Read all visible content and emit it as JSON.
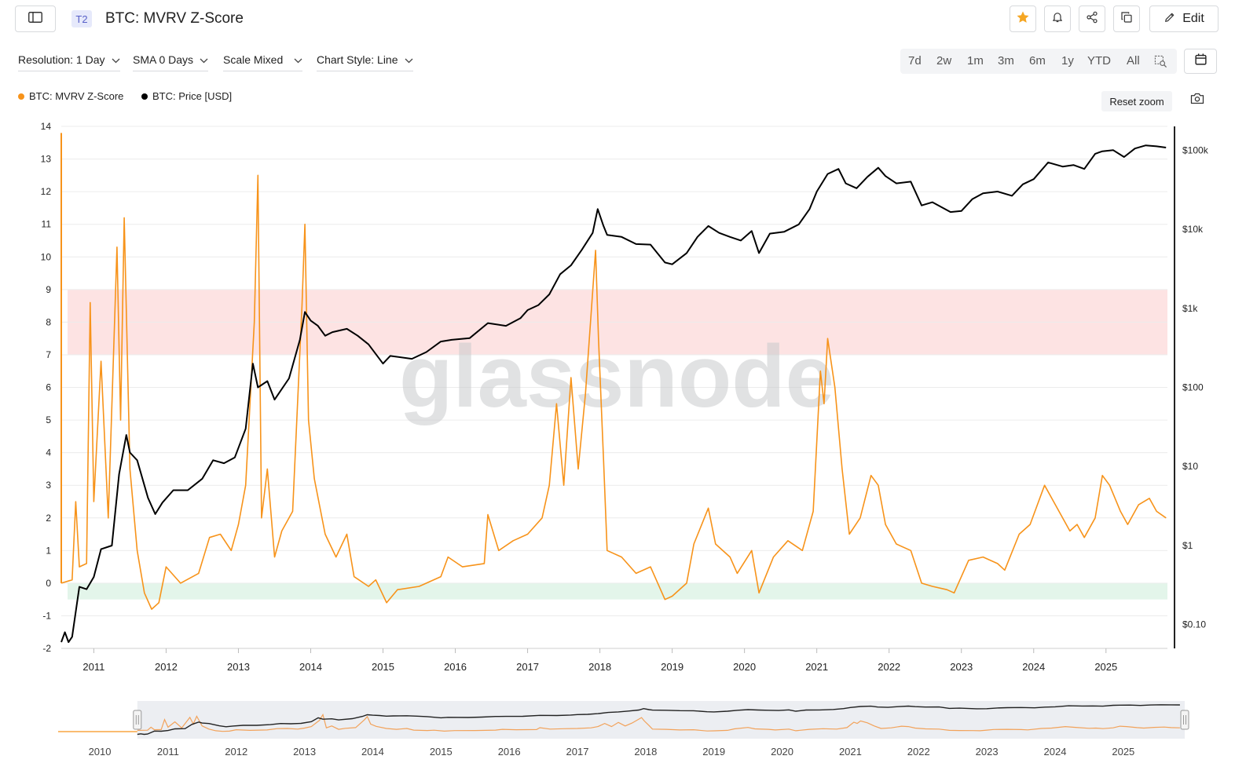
{
  "header": {
    "tier": "T2",
    "title": "BTC: MVRV Z-Score",
    "edit_label": "Edit"
  },
  "toolbar": {
    "resolution": "Resolution: 1 Day",
    "sma": "SMA 0 Days",
    "scale": "Scale Mixed",
    "chart_style": "Chart Style: Line",
    "ranges": [
      "7d",
      "2w",
      "1m",
      "3m",
      "6m",
      "1y",
      "YTD",
      "All"
    ]
  },
  "legend": {
    "zscore": "BTC: MVRV Z-Score",
    "price": "BTC: Price [USD]",
    "zscore_color": "#f7931a",
    "price_color": "#000000"
  },
  "reset_zoom": "Reset zoom",
  "watermark": "glassnode",
  "chart_data": {
    "type": "line",
    "title": "BTC: MVRV Z-Score",
    "x_range": [
      2010.55,
      2025.85
    ],
    "left_axis": {
      "ticks": [
        "14",
        "13",
        "12",
        "11",
        "10",
        "9",
        "8",
        "7",
        "6",
        "5",
        "4",
        "3",
        "2",
        "1",
        "0",
        "-1",
        "-2"
      ],
      "min": -2,
      "max": 14
    },
    "right_axis": {
      "scale": "log",
      "ticks": [
        "$100k",
        "$10k",
        "$1k",
        "$100",
        "$10",
        "$1",
        "$0.10"
      ],
      "min": 0.05,
      "max": 200000
    },
    "x_ticks": [
      "2011",
      "2012",
      "2013",
      "2014",
      "2015",
      "2016",
      "2017",
      "2018",
      "2019",
      "2020",
      "2021",
      "2022",
      "2023",
      "2024",
      "2025"
    ],
    "navigator_ticks": [
      "2010",
      "2011",
      "2012",
      "2013",
      "2014",
      "2015",
      "2016",
      "2017",
      "2018",
      "2019",
      "2020",
      "2021",
      "2022",
      "2023",
      "2024",
      "2025"
    ],
    "bands": [
      {
        "name": "overvalued-band",
        "y_from": 7,
        "y_to": 9,
        "color": "#fde3e3"
      },
      {
        "name": "undervalued-band",
        "y_from": -0.5,
        "y_to": 0,
        "color": "#e3f5ea"
      }
    ],
    "series": [
      {
        "name": "BTC: MVRV Z-Score",
        "axis": "left",
        "color": "#f7931a",
        "points": [
          [
            2010.55,
            0
          ],
          [
            2010.7,
            0.1
          ],
          [
            2010.75,
            2.5
          ],
          [
            2010.8,
            0.5
          ],
          [
            2010.9,
            0.6
          ],
          [
            2010.95,
            8.6
          ],
          [
            2011.0,
            2.5
          ],
          [
            2011.1,
            6.8
          ],
          [
            2011.2,
            2.0
          ],
          [
            2011.32,
            10.3
          ],
          [
            2011.37,
            5.0
          ],
          [
            2011.42,
            11.2
          ],
          [
            2011.5,
            3.5
          ],
          [
            2011.6,
            1.0
          ],
          [
            2011.7,
            -0.3
          ],
          [
            2011.8,
            -0.8
          ],
          [
            2011.9,
            -0.6
          ],
          [
            2012.0,
            0.5
          ],
          [
            2012.2,
            0
          ],
          [
            2012.45,
            0.3
          ],
          [
            2012.6,
            1.4
          ],
          [
            2012.75,
            1.5
          ],
          [
            2012.9,
            1.0
          ],
          [
            2013.0,
            1.8
          ],
          [
            2013.1,
            3.0
          ],
          [
            2013.22,
            8.0
          ],
          [
            2013.27,
            12.5
          ],
          [
            2013.32,
            2.0
          ],
          [
            2013.4,
            3.5
          ],
          [
            2013.5,
            0.8
          ],
          [
            2013.6,
            1.6
          ],
          [
            2013.75,
            2.2
          ],
          [
            2013.88,
            8.5
          ],
          [
            2013.92,
            11.0
          ],
          [
            2013.97,
            5.0
          ],
          [
            2014.05,
            3.2
          ],
          [
            2014.2,
            1.5
          ],
          [
            2014.35,
            0.8
          ],
          [
            2014.5,
            1.5
          ],
          [
            2014.6,
            0.2
          ],
          [
            2014.8,
            -0.1
          ],
          [
            2014.9,
            0.1
          ],
          [
            2015.05,
            -0.6
          ],
          [
            2015.2,
            -0.2
          ],
          [
            2015.5,
            -0.1
          ],
          [
            2015.8,
            0.2
          ],
          [
            2015.9,
            0.8
          ],
          [
            2016.1,
            0.5
          ],
          [
            2016.4,
            0.6
          ],
          [
            2016.45,
            2.1
          ],
          [
            2016.6,
            1.0
          ],
          [
            2016.8,
            1.3
          ],
          [
            2017.0,
            1.5
          ],
          [
            2017.2,
            2.0
          ],
          [
            2017.3,
            3.0
          ],
          [
            2017.4,
            5.5
          ],
          [
            2017.5,
            3.0
          ],
          [
            2017.6,
            6.3
          ],
          [
            2017.7,
            3.5
          ],
          [
            2017.8,
            5.8
          ],
          [
            2017.94,
            10.2
          ],
          [
            2017.98,
            7.5
          ],
          [
            2018.05,
            3.8
          ],
          [
            2018.1,
            1.0
          ],
          [
            2018.3,
            0.8
          ],
          [
            2018.5,
            0.3
          ],
          [
            2018.7,
            0.5
          ],
          [
            2018.9,
            -0.5
          ],
          [
            2019.0,
            -0.4
          ],
          [
            2019.2,
            0
          ],
          [
            2019.3,
            1.2
          ],
          [
            2019.5,
            2.3
          ],
          [
            2019.6,
            1.2
          ],
          [
            2019.8,
            0.8
          ],
          [
            2019.9,
            0.3
          ],
          [
            2020.1,
            1.0
          ],
          [
            2020.2,
            -0.3
          ],
          [
            2020.4,
            0.8
          ],
          [
            2020.6,
            1.3
          ],
          [
            2020.8,
            1.0
          ],
          [
            2020.95,
            2.2
          ],
          [
            2021.05,
            6.5
          ],
          [
            2021.1,
            5.5
          ],
          [
            2021.15,
            7.5
          ],
          [
            2021.25,
            6.0
          ],
          [
            2021.35,
            3.5
          ],
          [
            2021.45,
            1.5
          ],
          [
            2021.6,
            2.0
          ],
          [
            2021.75,
            3.3
          ],
          [
            2021.85,
            3.0
          ],
          [
            2021.95,
            1.8
          ],
          [
            2022.1,
            1.2
          ],
          [
            2022.3,
            1.0
          ],
          [
            2022.45,
            0
          ],
          [
            2022.6,
            -0.1
          ],
          [
            2022.8,
            -0.2
          ],
          [
            2022.9,
            -0.3
          ],
          [
            2023.0,
            0.2
          ],
          [
            2023.1,
            0.7
          ],
          [
            2023.3,
            0.8
          ],
          [
            2023.5,
            0.6
          ],
          [
            2023.6,
            0.4
          ],
          [
            2023.8,
            1.5
          ],
          [
            2023.95,
            1.8
          ],
          [
            2024.15,
            3.0
          ],
          [
            2024.3,
            2.4
          ],
          [
            2024.5,
            1.6
          ],
          [
            2024.6,
            1.8
          ],
          [
            2024.7,
            1.4
          ],
          [
            2024.85,
            2.0
          ],
          [
            2024.95,
            3.3
          ],
          [
            2025.05,
            3.0
          ],
          [
            2025.2,
            2.2
          ],
          [
            2025.3,
            1.8
          ],
          [
            2025.45,
            2.4
          ],
          [
            2025.6,
            2.6
          ],
          [
            2025.7,
            2.2
          ],
          [
            2025.83,
            2.0
          ]
        ]
      },
      {
        "name": "BTC: Price [USD]",
        "axis": "right",
        "color": "#000000",
        "points": [
          [
            2010.55,
            0.06
          ],
          [
            2010.6,
            0.08
          ],
          [
            2010.65,
            0.06
          ],
          [
            2010.7,
            0.07
          ],
          [
            2010.8,
            0.3
          ],
          [
            2010.9,
            0.28
          ],
          [
            2011.0,
            0.4
          ],
          [
            2011.1,
            0.9
          ],
          [
            2011.25,
            1.0
          ],
          [
            2011.35,
            8
          ],
          [
            2011.45,
            25
          ],
          [
            2011.5,
            15
          ],
          [
            2011.6,
            12
          ],
          [
            2011.75,
            4
          ],
          [
            2011.85,
            2.5
          ],
          [
            2011.95,
            3.5
          ],
          [
            2012.1,
            5
          ],
          [
            2012.3,
            5
          ],
          [
            2012.5,
            7
          ],
          [
            2012.65,
            12
          ],
          [
            2012.8,
            11
          ],
          [
            2012.95,
            13
          ],
          [
            2013.1,
            30
          ],
          [
            2013.2,
            200
          ],
          [
            2013.27,
            100
          ],
          [
            2013.4,
            120
          ],
          [
            2013.5,
            70
          ],
          [
            2013.7,
            130
          ],
          [
            2013.85,
            400
          ],
          [
            2013.92,
            900
          ],
          [
            2014.0,
            700
          ],
          [
            2014.1,
            600
          ],
          [
            2014.2,
            450
          ],
          [
            2014.3,
            500
          ],
          [
            2014.5,
            550
          ],
          [
            2014.65,
            450
          ],
          [
            2014.8,
            350
          ],
          [
            2015.0,
            200
          ],
          [
            2015.1,
            250
          ],
          [
            2015.4,
            230
          ],
          [
            2015.6,
            280
          ],
          [
            2015.8,
            380
          ],
          [
            2015.95,
            400
          ],
          [
            2016.2,
            420
          ],
          [
            2016.45,
            650
          ],
          [
            2016.7,
            600
          ],
          [
            2016.9,
            750
          ],
          [
            2017.0,
            950
          ],
          [
            2017.15,
            1100
          ],
          [
            2017.3,
            1500
          ],
          [
            2017.45,
            2700
          ],
          [
            2017.6,
            3500
          ],
          [
            2017.75,
            5500
          ],
          [
            2017.9,
            9000
          ],
          [
            2017.97,
            18000
          ],
          [
            2018.05,
            11000
          ],
          [
            2018.1,
            8500
          ],
          [
            2018.3,
            8000
          ],
          [
            2018.5,
            6500
          ],
          [
            2018.7,
            6400
          ],
          [
            2018.9,
            3800
          ],
          [
            2019.0,
            3600
          ],
          [
            2019.2,
            5000
          ],
          [
            2019.35,
            8000
          ],
          [
            2019.5,
            11000
          ],
          [
            2019.65,
            9000
          ],
          [
            2019.8,
            8000
          ],
          [
            2019.95,
            7200
          ],
          [
            2020.1,
            9500
          ],
          [
            2020.2,
            5000
          ],
          [
            2020.35,
            8800
          ],
          [
            2020.55,
            9300
          ],
          [
            2020.75,
            11500
          ],
          [
            2020.9,
            18000
          ],
          [
            2021.0,
            30000
          ],
          [
            2021.15,
            50000
          ],
          [
            2021.3,
            58000
          ],
          [
            2021.4,
            38000
          ],
          [
            2021.55,
            33000
          ],
          [
            2021.7,
            46000
          ],
          [
            2021.85,
            60000
          ],
          [
            2021.95,
            47000
          ],
          [
            2022.1,
            38000
          ],
          [
            2022.3,
            40000
          ],
          [
            2022.45,
            20000
          ],
          [
            2022.6,
            22000
          ],
          [
            2022.85,
            16500
          ],
          [
            2023.0,
            17000
          ],
          [
            2023.15,
            24000
          ],
          [
            2023.3,
            28500
          ],
          [
            2023.5,
            30000
          ],
          [
            2023.7,
            26500
          ],
          [
            2023.85,
            37000
          ],
          [
            2024.0,
            43000
          ],
          [
            2024.2,
            70000
          ],
          [
            2024.4,
            62000
          ],
          [
            2024.55,
            65000
          ],
          [
            2024.7,
            58000
          ],
          [
            2024.85,
            90000
          ],
          [
            2024.95,
            97000
          ],
          [
            2025.1,
            100000
          ],
          [
            2025.25,
            82000
          ],
          [
            2025.4,
            105000
          ],
          [
            2025.55,
            115000
          ],
          [
            2025.7,
            112000
          ],
          [
            2025.83,
            108000
          ]
        ]
      }
    ]
  }
}
